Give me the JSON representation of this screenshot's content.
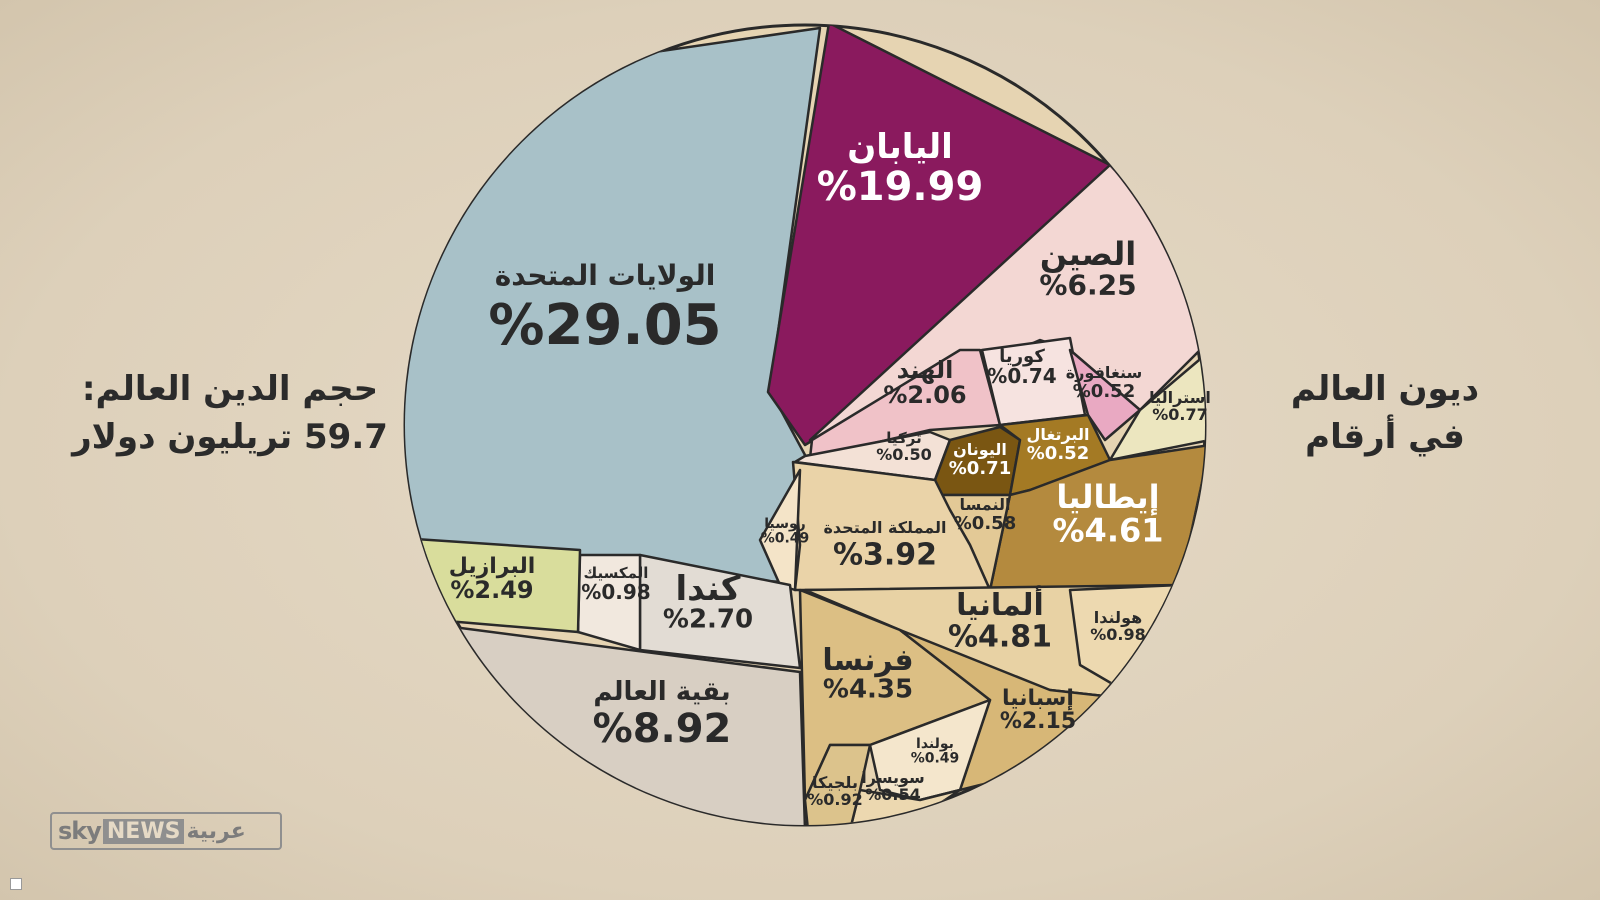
{
  "left_text": {
    "line1": "حجم الدين العالم:",
    "line2": "59.7 تريليون دولار"
  },
  "right_text": {
    "line1": "ديون العالم",
    "line2": "في أرقام"
  },
  "logo": {
    "sky": "sky",
    "news": "NEWS",
    "arabic": "عربية"
  },
  "chart_data": {
    "type": "pie",
    "title": "",
    "total": "59.7 تريليون دولار",
    "unit": "%",
    "slices": [
      {
        "name": "الولايات المتحدة",
        "label": "%29.05",
        "value": 29.05,
        "color": "#a8c1c8"
      },
      {
        "name": "اليابان",
        "label": "%19.99",
        "value": 19.99,
        "color": "#8a1a5e"
      },
      {
        "name": "الصين",
        "label": "%6.25",
        "value": 6.25,
        "color": "#f3d7d3"
      },
      {
        "name": "الهند",
        "label": "%2.06",
        "value": 2.06,
        "color": "#f0c2c8"
      },
      {
        "name": "كوريا",
        "label": "%0.74",
        "value": 0.74,
        "color": "#f6e3e0"
      },
      {
        "name": "سنغافورة",
        "label": "%0.52",
        "value": 0.52,
        "color": "#e9a9c2"
      },
      {
        "name": "استراليا",
        "label": "%0.77",
        "value": 0.77,
        "color": "#ece6bf"
      },
      {
        "name": "تركيا",
        "label": "%0.50",
        "value": 0.5,
        "color": "#f3e1d6"
      },
      {
        "name": "اليونان",
        "label": "%0.71",
        "value": 0.71,
        "color": "#7a5612"
      },
      {
        "name": "البرتغال",
        "label": "%0.52",
        "value": 0.52,
        "color": "#a47a24"
      },
      {
        "name": "إيطاليا",
        "label": "%4.61",
        "value": 4.61,
        "color": "#b48a3e"
      },
      {
        "name": "النمسا",
        "label": "%0.58",
        "value": 0.58,
        "color": "#e3c996"
      },
      {
        "name": "المملكة المتحدة",
        "label": "%3.92",
        "value": 3.92,
        "color": "#ead3a8"
      },
      {
        "name": "روسيا",
        "label": "%0.49",
        "value": 0.49,
        "color": "#f4e4c8"
      },
      {
        "name": "ألمانيا",
        "label": "%4.81",
        "value": 4.81,
        "color": "#e8d2a4"
      },
      {
        "name": "هولندا",
        "label": "%0.98",
        "value": 0.98,
        "color": "#edd9b0"
      },
      {
        "name": "فرنسا",
        "label": "%4.35",
        "value": 4.35,
        "color": "#dcbf84"
      },
      {
        "name": "إسبانيا",
        "label": "%2.15",
        "value": 2.15,
        "color": "#d7b777"
      },
      {
        "name": "بولندا",
        "label": "%0.49",
        "value": 0.49,
        "color": "#f4e6cc"
      },
      {
        "name": "سويسرا",
        "label": "%0.54",
        "value": 0.54,
        "color": "#ecd8b0"
      },
      {
        "name": "بلجيكا",
        "label": "%0.92",
        "value": 0.92,
        "color": "#dcc38c"
      },
      {
        "name": "كندا",
        "label": "%2.70",
        "value": 2.7,
        "color": "#e2dcd4"
      },
      {
        "name": "المكسيك",
        "label": "%0.98",
        "value": 0.98,
        "color": "#f1e8de"
      },
      {
        "name": "البرازيل",
        "label": "%2.49",
        "value": 2.49,
        "color": "#d9dd9c"
      },
      {
        "name": "بقية العالم",
        "label": "%8.92",
        "value": 8.92,
        "color": "#d8cfc3"
      }
    ]
  }
}
